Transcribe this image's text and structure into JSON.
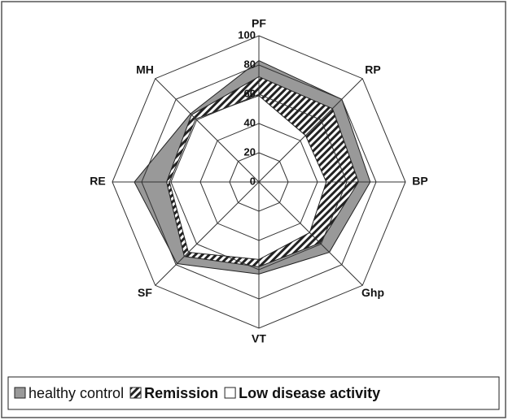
{
  "chart_data": {
    "type": "radar",
    "categories": [
      "PF",
      "RP",
      "BP",
      "Ghp",
      "VT",
      "SF",
      "RE",
      "MH"
    ],
    "rlim": [
      0,
      100
    ],
    "rticks": [
      0,
      20,
      40,
      60,
      80,
      100
    ],
    "grid": true,
    "series": [
      {
        "name": "healthy control",
        "color": "#999999",
        "fill": "solid",
        "values": [
          83,
          80,
          76,
          68,
          63,
          79,
          85,
          66
        ]
      },
      {
        "name": "Remission",
        "color": "#222222",
        "fill": "hatch",
        "values": [
          72,
          71,
          68,
          59,
          58,
          72,
          63,
          65
        ]
      },
      {
        "name": "Low disease activity",
        "color": "#ffffff",
        "fill": "solid",
        "values": [
          59,
          45,
          46,
          49,
          53,
          68,
          61,
          61
        ]
      }
    ],
    "legend": "bottom"
  }
}
